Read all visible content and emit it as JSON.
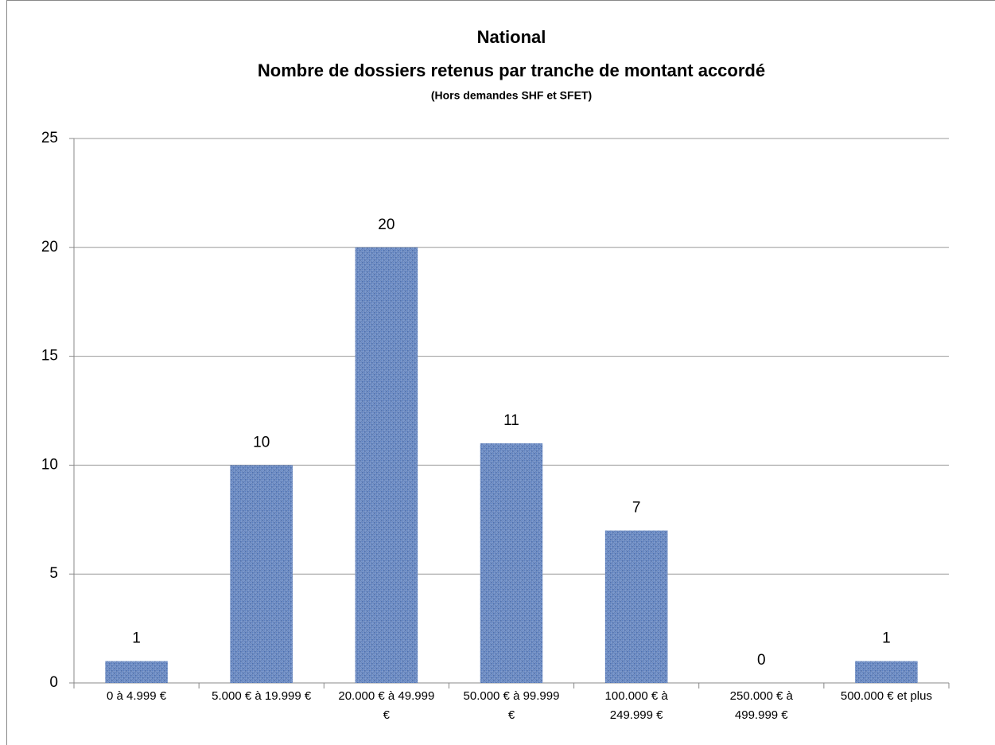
{
  "chart_data": {
    "type": "bar",
    "title": "National",
    "subtitle": "Nombre de dossiers retenus par tranche de montant accordé",
    "note": "(Hors demandes SHF et SFET)",
    "categories": [
      "0 à 4.999 €",
      "5.000 € à 19.999 €",
      "20.000 € à 49.999 €",
      "50.000 € à 99.999 €",
      "100.000 € à 249.999 €",
      "250.000 € à 499.999 €",
      "500.000 € et plus"
    ],
    "values": [
      1,
      10,
      20,
      11,
      7,
      0,
      1
    ],
    "color": "#5b7fbf",
    "ylim": [
      0,
      25
    ],
    "yticks": [
      0,
      5,
      10,
      15,
      20,
      25
    ],
    "grid": true
  }
}
